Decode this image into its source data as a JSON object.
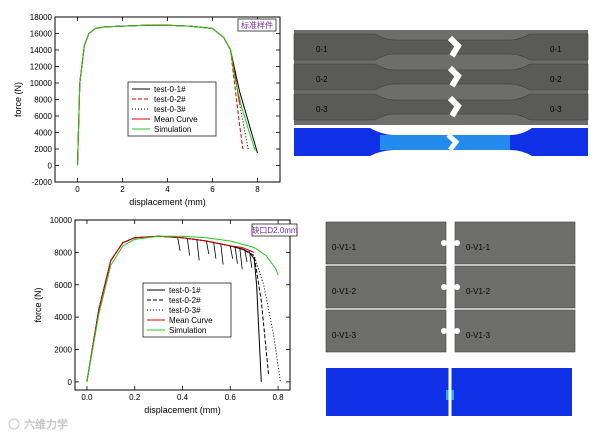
{
  "watermark": "六维力学",
  "chart_data": [
    {
      "type": "line",
      "annotation": "标准样件",
      "xlabel": "displacement (mm)",
      "ylabel": "force (N)",
      "xlim": [
        -1,
        9
      ],
      "ylim": [
        -2000,
        18000
      ],
      "xticks": [
        0,
        2,
        4,
        6,
        8
      ],
      "yticks": [
        -2000,
        0,
        2000,
        4000,
        6000,
        8000,
        10000,
        12000,
        14000,
        16000,
        18000
      ],
      "legend_position": "center-right",
      "series": [
        {
          "name": "test-0-1#",
          "color": "#000000",
          "dash": "solid",
          "x": [
            0,
            0.1,
            0.3,
            0.5,
            0.8,
            1.2,
            2,
            3,
            4,
            5,
            6,
            6.5,
            6.8,
            7.0,
            7.2,
            8.0
          ],
          "y": [
            0,
            10000,
            14500,
            16000,
            16600,
            16800,
            16900,
            17000,
            17000,
            16900,
            16600,
            15500,
            14000,
            11500,
            9000,
            1500
          ]
        },
        {
          "name": "test-0-2#",
          "color": "#e00000",
          "dash": "dash",
          "x": [
            0,
            0.1,
            0.3,
            0.5,
            0.8,
            1.2,
            2,
            3,
            4,
            5,
            6,
            6.5,
            6.8,
            7.0,
            7.2,
            7.35
          ],
          "y": [
            0,
            10000,
            14500,
            16000,
            16600,
            16800,
            16900,
            17000,
            17000,
            16900,
            16600,
            15500,
            14000,
            9500,
            5000,
            2000
          ]
        },
        {
          "name": "test-0-3#",
          "color": "#000000",
          "dash": "dot",
          "x": [
            0,
            0.1,
            0.3,
            0.5,
            0.8,
            1.2,
            2,
            3,
            4,
            5,
            6,
            6.5,
            6.8,
            7.0,
            7.3,
            7.6
          ],
          "y": [
            0,
            10000,
            14500,
            16000,
            16600,
            16800,
            16900,
            17000,
            17000,
            16900,
            16600,
            15500,
            14000,
            11000,
            6000,
            1800
          ]
        },
        {
          "name": "Mean Curve",
          "color": "#e00000",
          "dash": "solid",
          "x": [
            0,
            0.1,
            0.3,
            0.5,
            0.8,
            1.2,
            2,
            3,
            4,
            5,
            6,
            6.5,
            6.8,
            7.0,
            7.2
          ],
          "y": [
            0,
            10000,
            14500,
            16000,
            16600,
            16800,
            16900,
            17000,
            17000,
            16900,
            16600,
            15500,
            14000,
            11000,
            7500
          ]
        },
        {
          "name": "Simulation",
          "color": "#22cc22",
          "dash": "solid",
          "x": [
            0,
            0.1,
            0.3,
            0.5,
            0.8,
            1.2,
            2,
            3,
            4,
            5,
            6,
            6.5,
            6.8,
            7.0,
            7.3,
            7.7,
            7.9
          ],
          "y": [
            0,
            10000,
            14500,
            16000,
            16600,
            16800,
            16900,
            17000,
            17000,
            16900,
            16600,
            15500,
            14000,
            10500,
            7000,
            3500,
            1800
          ]
        }
      ]
    },
    {
      "type": "line",
      "annotation": "缺口D2.0mm",
      "xlabel": "displacement (mm)",
      "ylabel": "force (N)",
      "xlim": [
        -0.05,
        0.85
      ],
      "ylim": [
        -500,
        10000
      ],
      "xticks": [
        0.0,
        0.2,
        0.4,
        0.6,
        0.8
      ],
      "xticklabels": [
        "0.0",
        "0.2",
        "0.4",
        "0.6",
        "0.8"
      ],
      "yticks": [
        0,
        2000,
        4000,
        6000,
        8000,
        10000
      ],
      "legend_position": "center-right",
      "series": [
        {
          "name": "test-0-1#",
          "color": "#000000",
          "dash": "solid",
          "x": [
            0,
            0.05,
            0.1,
            0.15,
            0.2,
            0.3,
            0.4,
            0.5,
            0.6,
            0.65,
            0.68,
            0.7,
            0.71,
            0.73
          ],
          "y": [
            0,
            4500,
            7500,
            8600,
            8900,
            9000,
            8900,
            8700,
            8400,
            8200,
            8000,
            7600,
            6000,
            0
          ]
        },
        {
          "name": "test-0-2#",
          "color": "#000000",
          "dash": "dash",
          "x": [
            0,
            0.05,
            0.1,
            0.15,
            0.2,
            0.3,
            0.4,
            0.5,
            0.6,
            0.65,
            0.7,
            0.73,
            0.76
          ],
          "y": [
            0,
            4500,
            7500,
            8600,
            8900,
            9000,
            8900,
            8700,
            8400,
            8200,
            7800,
            5000,
            500
          ]
        },
        {
          "name": "test-0-3#",
          "color": "#000000",
          "dash": "dot",
          "x": [
            0,
            0.05,
            0.1,
            0.15,
            0.2,
            0.3,
            0.4,
            0.5,
            0.6,
            0.65,
            0.7,
            0.74,
            0.78,
            0.81
          ],
          "y": [
            0,
            4500,
            7500,
            8600,
            8900,
            9000,
            8900,
            8700,
            8400,
            8200,
            7800,
            6000,
            3000,
            0
          ]
        },
        {
          "name": "Mean Curve",
          "color": "#e00000",
          "dash": "solid",
          "x": [
            0,
            0.05,
            0.1,
            0.15,
            0.2,
            0.3,
            0.4,
            0.5,
            0.6,
            0.65,
            0.7
          ],
          "y": [
            0,
            4500,
            7500,
            8600,
            8900,
            9000,
            8900,
            8700,
            8400,
            8300,
            8000
          ]
        },
        {
          "name": "Simulation",
          "color": "#22cc22",
          "dash": "solid",
          "x": [
            0,
            0.05,
            0.1,
            0.15,
            0.2,
            0.3,
            0.4,
            0.5,
            0.6,
            0.7,
            0.75,
            0.77,
            0.79,
            0.8
          ],
          "y": [
            0,
            4200,
            7200,
            8400,
            8800,
            9000,
            9000,
            8900,
            8700,
            8300,
            7800,
            7400,
            7000,
            6600
          ]
        }
      ]
    }
  ],
  "photos": {
    "top_photo": {
      "background": "#6d6e6c",
      "specimen_color": "#5a5b59",
      "labels_left": [
        "0-1",
        "0-2",
        "0-3"
      ],
      "labels_right": [
        "0-1",
        "0-2",
        "0-3"
      ]
    },
    "top_sim": {
      "field_color": "#1030e8",
      "hot_color": "#2aa8f0"
    },
    "bottom_photo": {
      "background": "#ffffff",
      "plate_color": "#6e6f6d",
      "labels_left": [
        "0-V1-1",
        "0-V1-2",
        "0-V1-3"
      ],
      "labels_right": [
        "0-V1-1",
        "0-V1-2",
        "0-V1-3"
      ]
    },
    "bottom_sim": {
      "field_color": "#1030e8",
      "hot_color": "#2aa8f0"
    }
  }
}
